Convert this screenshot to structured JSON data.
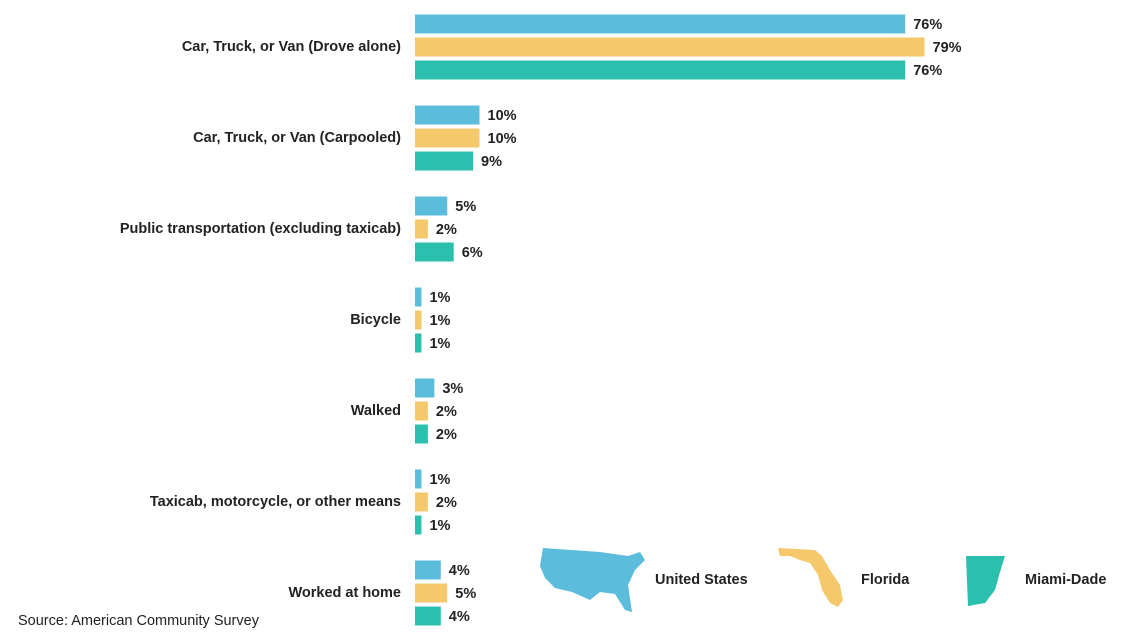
{
  "chart_data": {
    "type": "hbar",
    "categories": [
      "Car, Truck, or Van (Drove alone)",
      "Car, Truck, or Van (Carpooled)",
      "Public transportation (excluding taxicab)",
      "Bicycle",
      "Walked",
      "Taxicab, motorcycle, or other means",
      "Worked at home"
    ],
    "series": [
      {
        "name": "United States",
        "color": "#5bbcdc",
        "values": [
          76,
          10,
          5,
          1,
          3,
          1,
          4
        ],
        "value_labels": [
          "76%",
          "10%",
          "5%",
          "1%",
          "3%",
          "1%",
          "4%"
        ]
      },
      {
        "name": "Florida",
        "color": "#f5c96b",
        "values": [
          79,
          10,
          2,
          1,
          2,
          2,
          5
        ],
        "value_labels": [
          "79%",
          "10%",
          "2%",
          "1%",
          "2%",
          "2%",
          "5%"
        ]
      },
      {
        "name": "Miami-Dade",
        "color": "#2bbfad",
        "values": [
          76,
          9,
          6,
          1,
          2,
          1,
          4
        ],
        "value_labels": [
          "76%",
          "9%",
          "6%",
          "1%",
          "2%",
          "1%",
          "4%"
        ]
      }
    ],
    "source": "Source: American Community Survey",
    "legend": "bottom-right"
  }
}
